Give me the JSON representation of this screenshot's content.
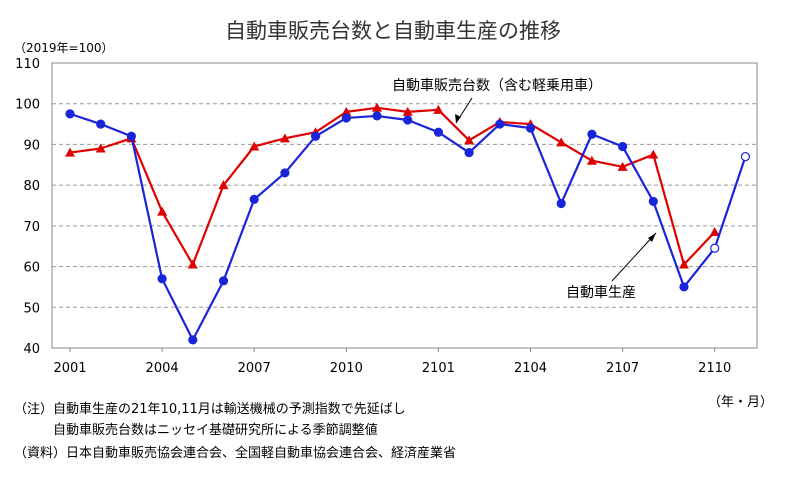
{
  "chart_data": {
    "type": "line",
    "title": "自動車販売台数と自動車生産の推移",
    "unit_label": "（2019年=100）",
    "x_unit_label": "（年・月）",
    "ylim": [
      40,
      110
    ],
    "yticks": [
      40,
      50,
      60,
      70,
      80,
      90,
      100,
      110
    ],
    "grid": true,
    "x": [
      "2001",
      "2002",
      "2003",
      "2004",
      "2005",
      "2006",
      "2007",
      "2008",
      "2009",
      "2010",
      "2011",
      "2012",
      "2101",
      "2102",
      "2103",
      "2104",
      "2105",
      "2106",
      "2107",
      "2108",
      "2109",
      "2110",
      "2111"
    ],
    "xtick_labels": [
      "2001",
      "2004",
      "2007",
      "2010",
      "2101",
      "2104",
      "2107",
      "2110"
    ],
    "series": [
      {
        "name": "自動車販売台数（含む軽乗用車）",
        "color": "#e00000",
        "marker": "triangle",
        "values": [
          88,
          89,
          91.5,
          73.5,
          60.5,
          80,
          89.5,
          91.5,
          93,
          98,
          99,
          98,
          98.5,
          91,
          95.5,
          95,
          90.5,
          86,
          84.5,
          87.5,
          60.5,
          68.5,
          null
        ]
      },
      {
        "name": "自動車生産",
        "color": "#1a24d8",
        "marker": "circle",
        "values": [
          97.5,
          95,
          92,
          57,
          42,
          56.5,
          76.5,
          83,
          92,
          96.5,
          97,
          96,
          93,
          88,
          95,
          94,
          75.5,
          92.5,
          89.5,
          76,
          55,
          64.5,
          87
        ],
        "hollow_from": "2110"
      }
    ],
    "annotations": {
      "sales_label": "自動車販売台数（含む軽乗用車）",
      "production_label": "自動車生産"
    }
  },
  "notes": {
    "note1": "（注）自動車生産の21年10,11月は輸送機械の予測指数で先延ばし",
    "note2": "自動車販売台数はニッセイ基礎研究所による季節調整値",
    "source": "（資料）日本自動車販売協会連合会、全国軽自動車協会連合会、経済産業省"
  }
}
